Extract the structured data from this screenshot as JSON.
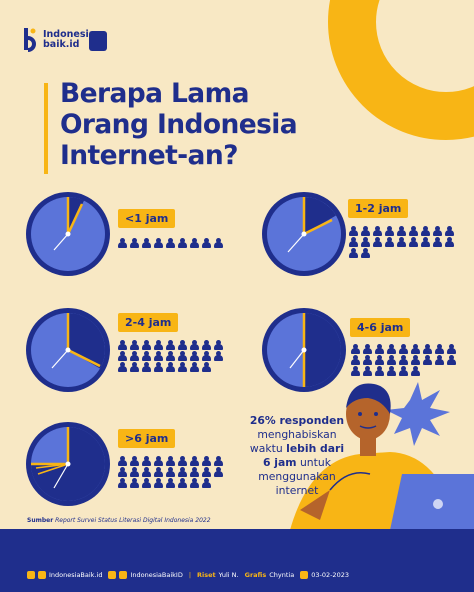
{
  "brand": {
    "name_line1": "Indonesia",
    "name_line2": "baik.id"
  },
  "title": {
    "line1": "Berapa Lama",
    "line2": "Orang Indonesia",
    "line3": "Internet-an?"
  },
  "categories": [
    {
      "label": "<1 jam",
      "people": 9
    },
    {
      "label": "1-2 jam",
      "people": 20
    },
    {
      "label": "2-4 jam",
      "people": 26
    },
    {
      "label": "4-6 jam",
      "people": 24
    },
    {
      "label": ">6 jam",
      "people": 26
    }
  ],
  "callout": {
    "pct": "26% responden",
    "l2": "menghabiskan",
    "l3a": "waktu ",
    "l3b": "lebih dari",
    "l4a": "6 jam",
    "l4b": " untuk",
    "l5": "menggunakan",
    "l6": "internet"
  },
  "source": {
    "label": "Sumber",
    "text": "Report Survei Status Literasi Digital Indonesia 2022"
  },
  "footer": {
    "handle1": "IndonesiaBaik.id",
    "handle2": "IndonesiaBaikID",
    "riset_label": "Riset",
    "riset_name": "Yuli N.",
    "grafis_label": "Grafis",
    "grafis_name": "Chyntia",
    "date": "03-02-2023"
  },
  "colors": {
    "navy": "#1F2E8C",
    "yellow": "#F8B515",
    "clock_face": "#5B74D9",
    "bg": "#F8E8C4"
  }
}
